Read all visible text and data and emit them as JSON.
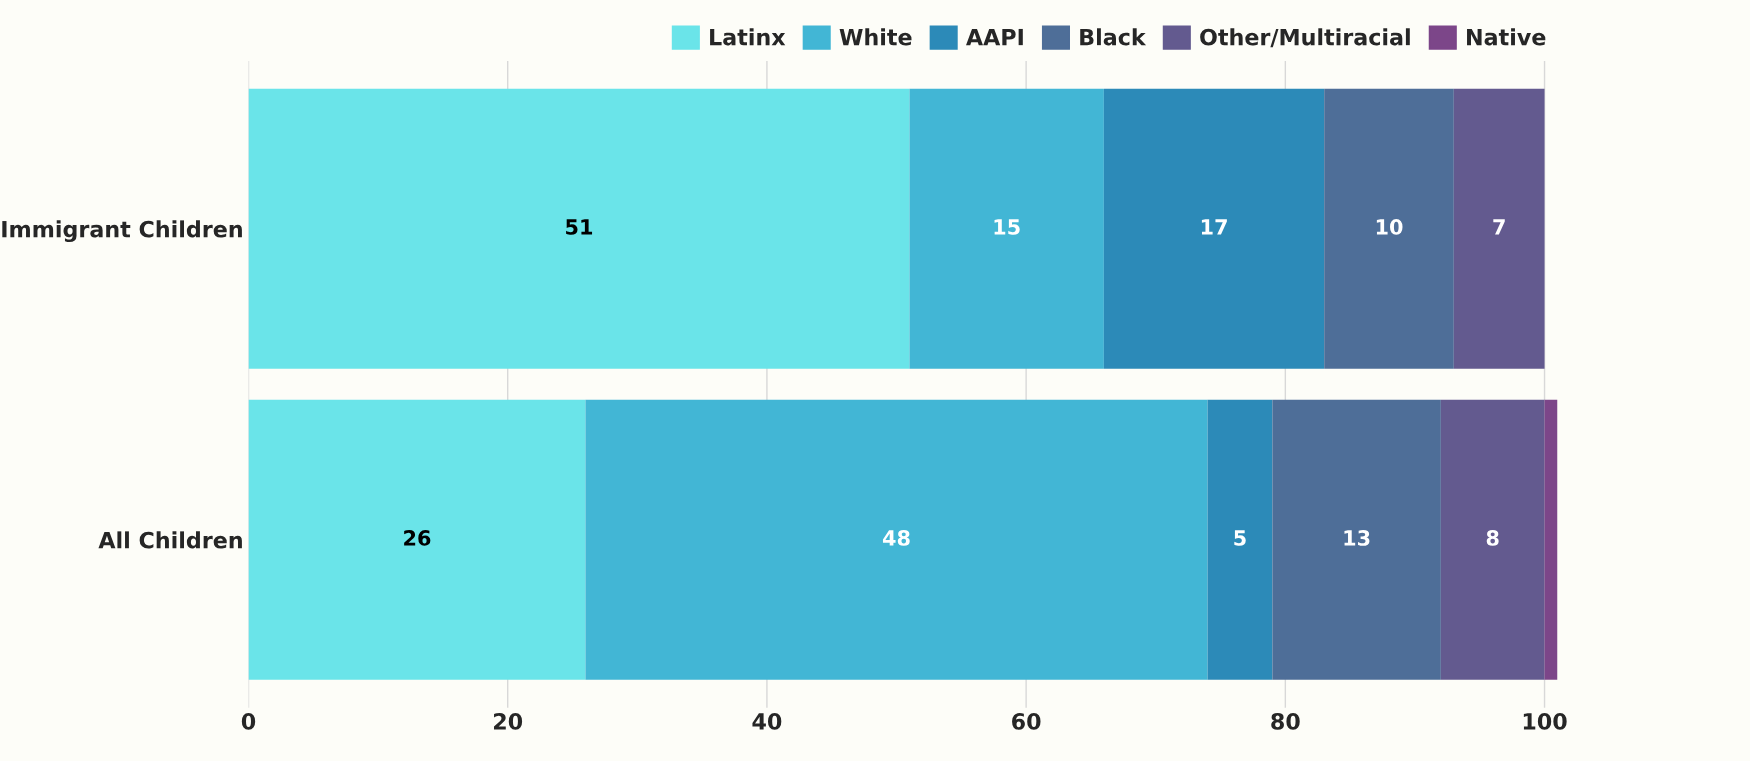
{
  "chart_data": {
    "type": "bar",
    "orientation": "horizontal",
    "stacked": true,
    "categories": [
      "Immigrant Children",
      "All Children"
    ],
    "series": [
      {
        "name": "Latinx",
        "color": "#6ae4e9",
        "values": [
          51,
          26
        ],
        "value_labels": [
          "51",
          "26"
        ]
      },
      {
        "name": "White",
        "color": "#42b6d5",
        "values": [
          15,
          48
        ],
        "value_labels": [
          "15",
          "48"
        ]
      },
      {
        "name": "AAPI",
        "color": "#2c8ab8",
        "values": [
          17,
          5
        ],
        "value_labels": [
          "17",
          "5"
        ]
      },
      {
        "name": "Black",
        "color": "#4e6e98",
        "values": [
          10,
          13
        ],
        "value_labels": [
          "10",
          "13"
        ]
      },
      {
        "name": "Other/Multiracial",
        "color": "#635a8f",
        "values": [
          7,
          8
        ],
        "value_labels": [
          "7",
          "8"
        ]
      },
      {
        "name": "Native",
        "color": "#7c4689",
        "values": [
          0,
          1
        ],
        "value_labels": [
          null,
          null
        ]
      }
    ],
    "xlim": [
      0,
      101
    ],
    "xticks": [
      0,
      20,
      40,
      60,
      80,
      100
    ],
    "grid": "x",
    "legend": "top right"
  }
}
